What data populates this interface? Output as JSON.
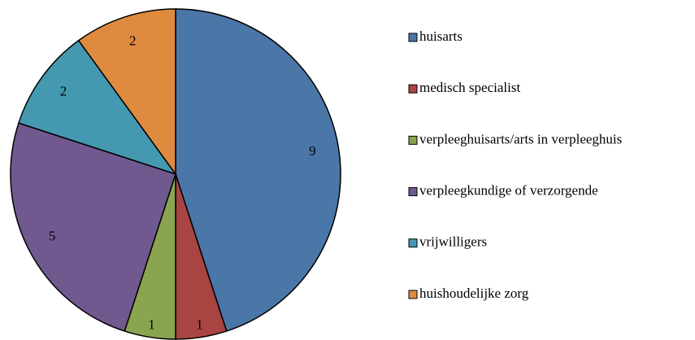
{
  "chart_data": {
    "type": "pie",
    "categories": [
      "huisarts",
      "medisch specialist",
      "verpleeghuisarts/arts in verpleeghuis",
      "verpleegkundige of verzorgende",
      "vrijwilligers",
      "huishoudelijke zorg"
    ],
    "values": [
      9,
      1,
      1,
      5,
      2,
      2
    ],
    "colors": [
      "#4a76a8",
      "#a84442",
      "#8aa54f",
      "#70598f",
      "#4499b0",
      "#de8a3f"
    ],
    "legend": "right"
  }
}
